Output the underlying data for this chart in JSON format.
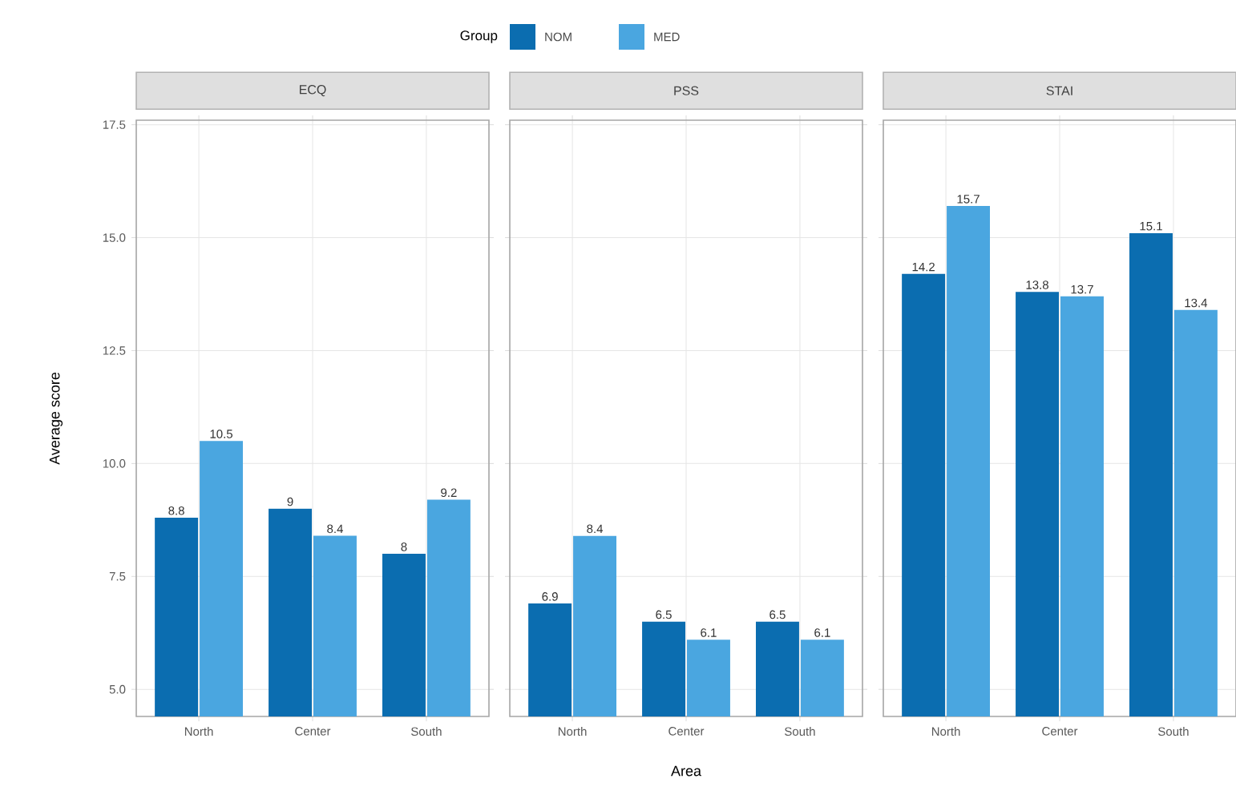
{
  "chart_data": [
    {
      "type": "bar",
      "title": "ECQ",
      "ylabel": "Average score",
      "legend_title": "Group",
      "legend": "top",
      "categories": [
        "North",
        "Center",
        "South"
      ],
      "ylim": [
        4.4,
        17.6
      ],
      "yticks": [
        {
          "value": 5,
          "label": "5.0"
        },
        {
          "value": 7.5,
          "label": "7.5"
        },
        {
          "value": 10,
          "label": "10.0"
        },
        {
          "value": 12.5,
          "label": "12.5"
        },
        {
          "value": 15,
          "label": "15.0"
        },
        {
          "value": 17.5,
          "label": "17.5"
        }
      ],
      "grid": true,
      "data_labels": true,
      "series": [
        {
          "name": "NOM",
          "color": "#0b6db0",
          "values": [
            8.8,
            9,
            8
          ]
        },
        {
          "name": "MED",
          "color": "#4aa6e0",
          "values": [
            10.5,
            8.4,
            9.2
          ]
        }
      ]
    },
    {
      "type": "bar",
      "title": "PSS",
      "xlabel": "Area",
      "categories": [
        "North",
        "Center",
        "South"
      ],
      "ylim": [
        4.4,
        17.6
      ],
      "yticks": [
        {
          "value": 5,
          "label": null
        },
        {
          "value": 7.5,
          "label": null
        },
        {
          "value": 10,
          "label": null
        },
        {
          "value": 12.5,
          "label": null
        },
        {
          "value": 15,
          "label": null
        },
        {
          "value": 17.5,
          "label": null
        }
      ],
      "tick_labels": "x",
      "grid": true,
      "data_labels": true,
      "series": [
        {
          "color": "#0b6db0",
          "values": [
            6.9,
            6.5,
            6.5
          ]
        },
        {
          "color": "#4aa6e0",
          "values": [
            8.4,
            6.1,
            6.1
          ]
        }
      ]
    },
    {
      "type": "bar",
      "title": "STAI",
      "categories": [
        "North",
        "Center",
        "South"
      ],
      "ylim": [
        4.4,
        17.6
      ],
      "yticks": [
        {
          "value": 5,
          "label": null
        },
        {
          "value": 7.5,
          "label": null
        },
        {
          "value": 10,
          "label": null
        },
        {
          "value": 12.5,
          "label": null
        },
        {
          "value": 15,
          "label": null
        },
        {
          "value": 17.5,
          "label": null
        }
      ],
      "tick_labels": "x",
      "grid": true,
      "data_labels": true,
      "series": [
        {
          "color": "#0b6db0",
          "values": [
            14.2,
            13.8,
            15.1
          ]
        },
        {
          "color": "#4aa6e0",
          "values": [
            15.7,
            13.7,
            13.4
          ]
        }
      ]
    }
  ]
}
